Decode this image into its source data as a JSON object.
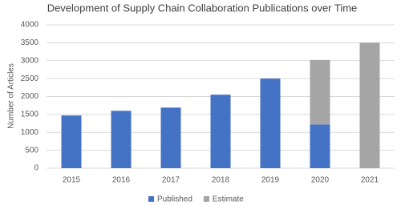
{
  "chart_data": {
    "type": "stacked_bar",
    "title": "Development of Supply Chain Collaboration Publications over Time",
    "y_label": "Number of Articles",
    "categories": [
      "2015",
      "2016",
      "2017",
      "2018",
      "2019",
      "2020",
      "2021"
    ],
    "series": [
      {
        "name": "Published",
        "color": "#4472c4",
        "values": [
          1470,
          1600,
          1690,
          2050,
          2500,
          1220,
          null
        ]
      },
      {
        "name": "Estimate",
        "color": "#a5a5a5",
        "values": [
          null,
          null,
          null,
          null,
          null,
          1800,
          3500
        ]
      }
    ],
    "ylim": [
      0,
      4000
    ],
    "yticks": [
      0,
      500,
      1000,
      1500,
      2000,
      2500,
      3000,
      3500,
      4000
    ],
    "grid": true,
    "legend": "bottom"
  }
}
